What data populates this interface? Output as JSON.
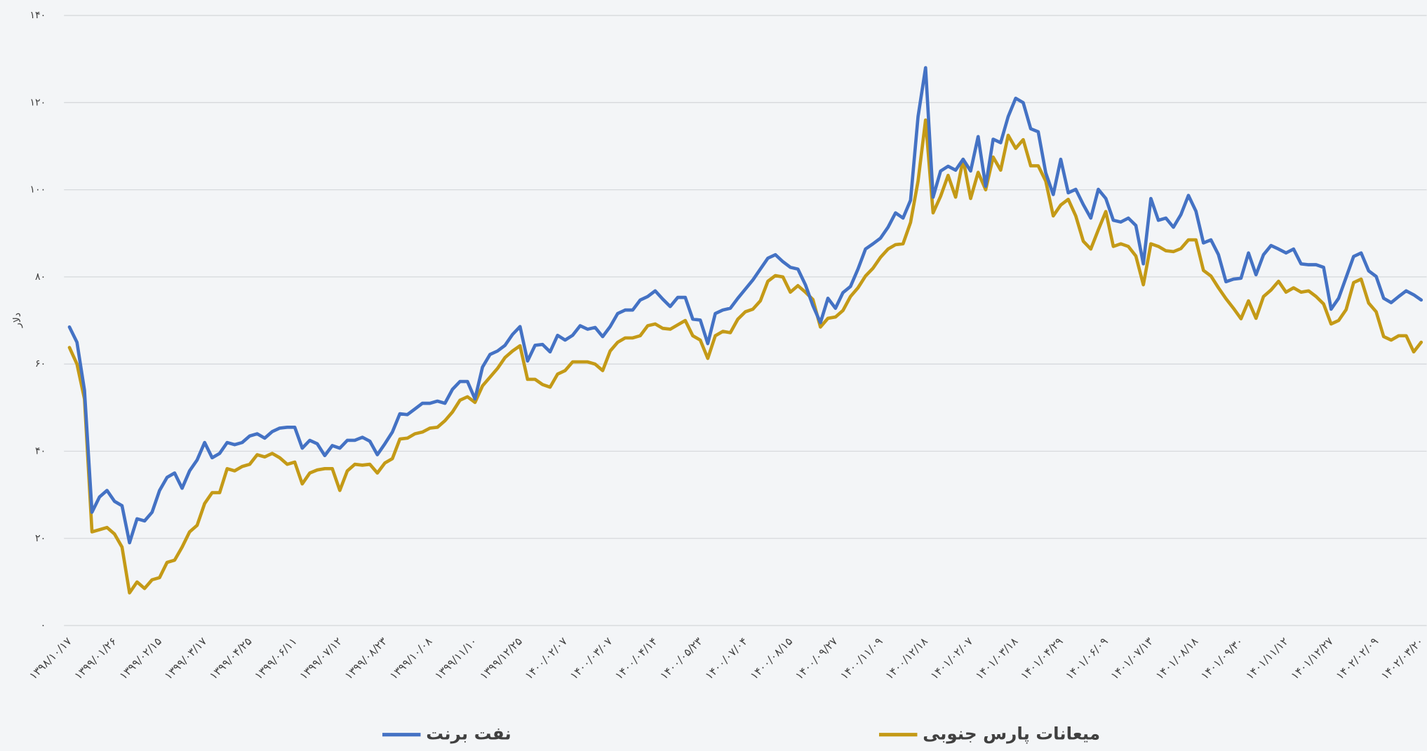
{
  "chart_data": {
    "type": "line",
    "y_label": "دلار",
    "categories": [
      "۱۳۹۸/۱۰/۱۷",
      null,
      null,
      null,
      null,
      null,
      "۱۳۹۹/۰۱/۲۶",
      null,
      null,
      null,
      null,
      null,
      "۱۳۹۹/۰۲/۱۵",
      null,
      null,
      null,
      null,
      null,
      "۱۳۹۹/۰۳/۱۷",
      null,
      null,
      null,
      null,
      null,
      "۱۳۹۹/۰۴/۲۵",
      null,
      null,
      null,
      null,
      null,
      "۱۳۹۹/۰۶/۱۱",
      null,
      null,
      null,
      null,
      null,
      "۱۳۹۹/۰۷/۱۲",
      null,
      null,
      null,
      null,
      null,
      "۱۳۹۹/۰۸/۲۳",
      null,
      null,
      null,
      null,
      null,
      "۱۳۹۹/۱۰/۰۸",
      null,
      null,
      null,
      null,
      null,
      "۱۳۹۹/۱۱/۱۰",
      null,
      null,
      null,
      null,
      null,
      "۱۳۹۹/۱۲/۲۵",
      null,
      null,
      null,
      null,
      null,
      "۱۴۰۰/۰۲/۰۷",
      null,
      null,
      null,
      null,
      null,
      "۱۴۰۰/۰۳/۰۷",
      null,
      null,
      null,
      null,
      null,
      "۱۴۰۰/۰۴/۱۴",
      null,
      null,
      null,
      null,
      null,
      "۱۴۰۰/۰۵/۲۳",
      null,
      null,
      null,
      null,
      null,
      "۱۴۰۰/۰۷/۰۴",
      null,
      null,
      null,
      null,
      null,
      "۱۴۰۰/۰۸/۱۵",
      null,
      null,
      null,
      null,
      null,
      "۱۴۰۰/۰۹/۲۷",
      null,
      null,
      null,
      null,
      null,
      "۱۴۰۰/۱۱/۰۹",
      null,
      null,
      null,
      null,
      null,
      "۱۴۰۰/۱۲/۱۸",
      null,
      null,
      null,
      null,
      null,
      "۱۴۰۱/۰۲/۰۷",
      null,
      null,
      null,
      null,
      null,
      "۱۴۰۱/۰۳/۱۸",
      null,
      null,
      null,
      null,
      null,
      "۱۴۰۱/۰۴/۲۹",
      null,
      null,
      null,
      null,
      null,
      "۱۴۰۱/۰۶/۰۹",
      null,
      null,
      null,
      null,
      null,
      "۱۴۰۱/۰۷/۱۳",
      null,
      null,
      null,
      null,
      null,
      "۱۴۰۱/۰۸/۱۸",
      null,
      null,
      null,
      null,
      null,
      "۱۴۰۱/۰۹/۳۰",
      null,
      null,
      null,
      null,
      null,
      "۱۴۰۱/۱۱/۱۲",
      null,
      null,
      null,
      null,
      null,
      "۱۴۰۱/۱۲/۲۷",
      null,
      null,
      null,
      null,
      null,
      "۱۴۰۲/۰۲/۰۹",
      null,
      null,
      null,
      null,
      null,
      "۱۴۰۲/۰۳/۲۰"
    ],
    "series": [
      {
        "name": "نفت برنت",
        "color": "#4472c4",
        "values": [
          68.5,
          65,
          54,
          26,
          29.5,
          31,
          28.5,
          27.5,
          19,
          24.5,
          24,
          26,
          31,
          34,
          35,
          31.5,
          35.5,
          38,
          42,
          38.5,
          39.5,
          42,
          41.5,
          42,
          43.5,
          44,
          43,
          44.5,
          45.3,
          45.5,
          45.5,
          40.7,
          42.5,
          41.7,
          39,
          41.3,
          40.7,
          42.5,
          42.5,
          43.2,
          42.3,
          39.2,
          41.7,
          44.4,
          48.6,
          48.4,
          49.7,
          51,
          51,
          51.5,
          51,
          54.2,
          56,
          56,
          52,
          59.3,
          62.2,
          63,
          64.3,
          66.8,
          68.6,
          60.7,
          64.3,
          64.5,
          62.8,
          66.6,
          65.5,
          66.6,
          68.8,
          68,
          68.4,
          66.3,
          68.6,
          71.6,
          72.4,
          72.4,
          74.7,
          75.5,
          76.8,
          74.9,
          73.2,
          75.3,
          75.3,
          70.3,
          70.1,
          64.7,
          71.6,
          72.4,
          72.8,
          75.1,
          77.2,
          79.3,
          81.8,
          84.3,
          85.1,
          83.5,
          82.2,
          81.8,
          78.2,
          73.4,
          69.5,
          75.1,
          72.8,
          76.4,
          77.8,
          81.8,
          86.4,
          87.6,
          88.9,
          91.4,
          94.7,
          93.5,
          97.6,
          116.8,
          128,
          98.3,
          104.3,
          105.4,
          104.5,
          107,
          104.3,
          112.2,
          100.8,
          111.6,
          110.8,
          116.8,
          121,
          120,
          114,
          113.3,
          103.9,
          98.9,
          107,
          99.3,
          100.1,
          96.6,
          93.5,
          100.1,
          98,
          93,
          92.6,
          93.5,
          91.8,
          83,
          98,
          93,
          93.5,
          91.4,
          94.3,
          98.7,
          95.1,
          87.8,
          88.5,
          85.1,
          78.9,
          79.5,
          79.7,
          85.5,
          80.5,
          85.1,
          87.2,
          86.4,
          85.5,
          86.4,
          83,
          82.8,
          82.8,
          82.2,
          72.6,
          75.1,
          79.9,
          84.7,
          85.5,
          81.4,
          80.1,
          75.1,
          74.1,
          75.5,
          76.8,
          75.9,
          74.7
        ]
      },
      {
        "name": "میعانات پارس جنوبی",
        "color": "#c49a17",
        "values": [
          63.8,
          60,
          52,
          21.5,
          22,
          22.5,
          21,
          18,
          7.5,
          10,
          8.5,
          10.5,
          11,
          14.5,
          15,
          18,
          21.5,
          23,
          28,
          30.5,
          30.5,
          36,
          35.5,
          36.5,
          37,
          39.2,
          38.7,
          39.5,
          38.5,
          37,
          37.5,
          32.5,
          35,
          35.7,
          36,
          36,
          31,
          35.5,
          37,
          36.8,
          37,
          35,
          37.3,
          38.3,
          42.8,
          43,
          44,
          44.4,
          45.3,
          45.5,
          47,
          49,
          51.7,
          52.5,
          51.2,
          55,
          57,
          59,
          61.5,
          63,
          64.2,
          56.5,
          56.5,
          55.3,
          54.7,
          57.7,
          58.5,
          60.5,
          60.5,
          60.5,
          60,
          58.5,
          63,
          65,
          66,
          66,
          66.5,
          68.8,
          69.2,
          68.2,
          68,
          69,
          70,
          66.5,
          65.5,
          61.3,
          66.5,
          67.5,
          67.2,
          70.3,
          72,
          72.6,
          74.5,
          79,
          80.3,
          80,
          76.5,
          78,
          76.5,
          74.8,
          68.5,
          70.5,
          70.8,
          72.3,
          75.5,
          77.5,
          80.2,
          82,
          84.5,
          86.4,
          87.4,
          87.6,
          92.5,
          102,
          116,
          94.7,
          98.5,
          103.3,
          98.3,
          107,
          98,
          104,
          100,
          107.5,
          104.5,
          112.5,
          109.5,
          111.5,
          105.5,
          105.5,
          102,
          94,
          96.5,
          97.8,
          94,
          88.2,
          86.4,
          90.8,
          95,
          87,
          87.6,
          87,
          84.8,
          78.2,
          87.6,
          87,
          86,
          85.8,
          86.5,
          88.5,
          88.5,
          81.5,
          80.2,
          77.5,
          75,
          72.8,
          70.4,
          74.5,
          70.5,
          75.5,
          77,
          79,
          76.5,
          77.5,
          76.5,
          76.8,
          75.5,
          73.8,
          69.2,
          70,
          72.5,
          78.7,
          79.5,
          74,
          72,
          66.3,
          65.5,
          66.5,
          66.5,
          62.8,
          65
        ]
      }
    ],
    "ylim": [
      0,
      140
    ],
    "yticks": [
      {
        "value": 0,
        "label": "۰"
      },
      {
        "value": 20,
        "label": "۲۰"
      },
      {
        "value": 40,
        "label": "۴۰"
      },
      {
        "value": 60,
        "label": "۶۰"
      },
      {
        "value": 80,
        "label": "۸۰"
      },
      {
        "value": 100,
        "label": "۱۰۰"
      },
      {
        "value": 120,
        "label": "۱۲۰"
      },
      {
        "value": 140,
        "label": "۱۴۰"
      }
    ],
    "grid": true,
    "legend": "bottom"
  }
}
